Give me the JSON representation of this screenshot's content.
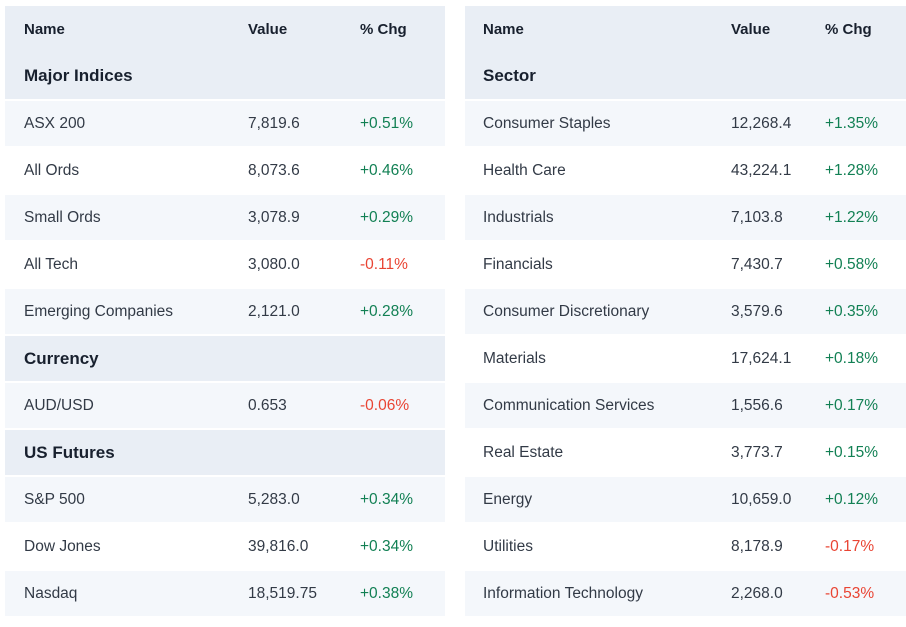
{
  "colors": {
    "header_bg": "#e9eef5",
    "row_bg": "#ffffff",
    "row_alt_bg": "#f4f7fb",
    "heading_text": "#18202e",
    "row_text": "#323a46",
    "positive": "#128054",
    "negative": "#e94433"
  },
  "columns": {
    "name": "Name",
    "value": "Value",
    "change": "% Chg"
  },
  "tables": [
    {
      "sections": [
        {
          "title": "Major Indices",
          "rows": [
            {
              "name": "ASX 200",
              "value": "7,819.6",
              "change": "+0.51%"
            },
            {
              "name": "All Ords",
              "value": "8,073.6",
              "change": "+0.46%"
            },
            {
              "name": "Small Ords",
              "value": "3,078.9",
              "change": "+0.29%"
            },
            {
              "name": "All Tech",
              "value": "3,080.0",
              "change": "-0.11%"
            },
            {
              "name": "Emerging Companies",
              "value": "2,121.0",
              "change": "+0.28%"
            }
          ]
        },
        {
          "title": "Currency",
          "rows": [
            {
              "name": "AUD/USD",
              "value": "0.653",
              "change": "-0.06%"
            }
          ]
        },
        {
          "title": "US Futures",
          "rows": [
            {
              "name": "S&P 500",
              "value": "5,283.0",
              "change": "+0.34%"
            },
            {
              "name": "Dow Jones",
              "value": "39,816.0",
              "change": "+0.34%"
            },
            {
              "name": "Nasdaq",
              "value": "18,519.75",
              "change": "+0.38%"
            }
          ]
        }
      ]
    },
    {
      "sections": [
        {
          "title": "Sector",
          "rows": [
            {
              "name": "Consumer Staples",
              "value": "12,268.4",
              "change": "+1.35%"
            },
            {
              "name": "Health Care",
              "value": "43,224.1",
              "change": "+1.28%"
            },
            {
              "name": "Industrials",
              "value": "7,103.8",
              "change": "+1.22%"
            },
            {
              "name": "Financials",
              "value": "7,430.7",
              "change": "+0.58%"
            },
            {
              "name": "Consumer Discretionary",
              "value": "3,579.6",
              "change": "+0.35%"
            },
            {
              "name": "Materials",
              "value": "17,624.1",
              "change": "+0.18%"
            },
            {
              "name": "Communication Services",
              "value": "1,556.6",
              "change": "+0.17%"
            },
            {
              "name": "Real Estate",
              "value": "3,773.7",
              "change": "+0.15%"
            },
            {
              "name": "Energy",
              "value": "10,659.0",
              "change": "+0.12%"
            },
            {
              "name": "Utilities",
              "value": "8,178.9",
              "change": "-0.17%"
            },
            {
              "name": "Information Technology",
              "value": "2,268.0",
              "change": "-0.53%"
            }
          ]
        }
      ]
    }
  ]
}
